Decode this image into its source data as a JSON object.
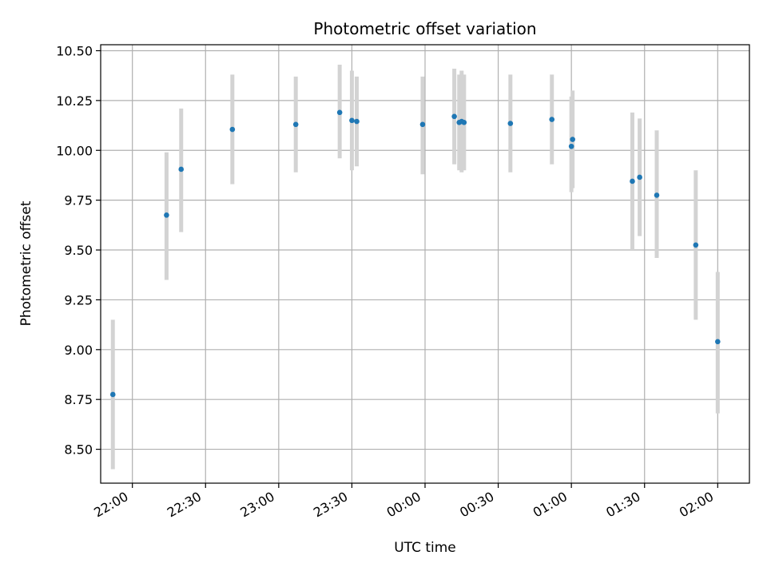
{
  "chart_data": {
    "type": "scatter",
    "title": "Photometric offset variation",
    "xlabel": "UTC time",
    "ylabel": "Photometric offset",
    "xlim": [
      "2000-01-01T21:47:00",
      "2000-01-02T02:13:00"
    ],
    "ylim": [
      8.33,
      10.53
    ],
    "grid": true,
    "x_tick_labels": [
      "22:00",
      "22:30",
      "23:00",
      "23:30",
      "00:00",
      "00:30",
      "01:00",
      "01:30",
      "02:00"
    ],
    "x_ticks": [
      "2000-01-01T22:00:00",
      "2000-01-01T22:30:00",
      "2000-01-01T23:00:00",
      "2000-01-01T23:30:00",
      "2000-01-02T00:00:00",
      "2000-01-02T00:30:00",
      "2000-01-02T01:00:00",
      "2000-01-02T01:30:00",
      "2000-01-02T02:00:00"
    ],
    "y_ticks": [
      8.5,
      8.75,
      9.0,
      9.25,
      9.5,
      9.75,
      10.0,
      10.25,
      10.5
    ],
    "y_tick_labels": [
      "8.50",
      "8.75",
      "9.00",
      "9.25",
      "9.50",
      "9.75",
      "10.00",
      "10.25",
      "10.50"
    ],
    "marker_color": "#1f77b4",
    "errorbar_color": "#d3d3d3",
    "points": [
      {
        "x": "2000-01-01T21:52:00",
        "y": 8.775,
        "ylow": 8.4,
        "yhigh": 9.15
      },
      {
        "x": "2000-01-01T22:14:00",
        "y": 9.675,
        "ylow": 9.35,
        "yhigh": 9.99
      },
      {
        "x": "2000-01-01T22:20:00",
        "y": 9.905,
        "ylow": 9.59,
        "yhigh": 10.21
      },
      {
        "x": "2000-01-01T22:41:00",
        "y": 10.105,
        "ylow": 9.83,
        "yhigh": 10.38
      },
      {
        "x": "2000-01-01T23:07:00",
        "y": 10.13,
        "ylow": 9.89,
        "yhigh": 10.37
      },
      {
        "x": "2000-01-01T23:25:00",
        "y": 10.19,
        "ylow": 9.96,
        "yhigh": 10.43
      },
      {
        "x": "2000-01-01T23:30:00",
        "y": 10.15,
        "ylow": 9.9,
        "yhigh": 10.4
      },
      {
        "x": "2000-01-01T23:32:00",
        "y": 10.145,
        "ylow": 9.92,
        "yhigh": 10.37
      },
      {
        "x": "2000-01-01T23:59:00",
        "y": 10.13,
        "ylow": 9.88,
        "yhigh": 10.37
      },
      {
        "x": "2000-01-02T00:12:00",
        "y": 10.17,
        "ylow": 9.93,
        "yhigh": 10.41
      },
      {
        "x": "2000-01-02T00:14:00",
        "y": 10.14,
        "ylow": 9.9,
        "yhigh": 10.38
      },
      {
        "x": "2000-01-02T00:15:00",
        "y": 10.145,
        "ylow": 9.89,
        "yhigh": 10.4
      },
      {
        "x": "2000-01-02T00:16:00",
        "y": 10.14,
        "ylow": 9.9,
        "yhigh": 10.38
      },
      {
        "x": "2000-01-02T00:35:00",
        "y": 10.135,
        "ylow": 9.89,
        "yhigh": 10.38
      },
      {
        "x": "2000-01-02T00:52:00",
        "y": 10.155,
        "ylow": 9.93,
        "yhigh": 10.38
      },
      {
        "x": "2000-01-02T01:00:00",
        "y": 10.02,
        "ylow": 9.79,
        "yhigh": 10.27
      },
      {
        "x": "2000-01-02T01:00:30",
        "y": 10.055,
        "ylow": 9.81,
        "yhigh": 10.3
      },
      {
        "x": "2000-01-02T01:25:00",
        "y": 9.845,
        "ylow": 9.5,
        "yhigh": 10.19
      },
      {
        "x": "2000-01-02T01:28:00",
        "y": 9.865,
        "ylow": 9.57,
        "yhigh": 10.16
      },
      {
        "x": "2000-01-02T01:35:00",
        "y": 9.775,
        "ylow": 9.46,
        "yhigh": 10.1
      },
      {
        "x": "2000-01-02T01:51:00",
        "y": 9.525,
        "ylow": 9.15,
        "yhigh": 9.9
      },
      {
        "x": "2000-01-02T02:00:00",
        "y": 9.04,
        "ylow": 8.68,
        "yhigh": 9.39
      }
    ]
  }
}
